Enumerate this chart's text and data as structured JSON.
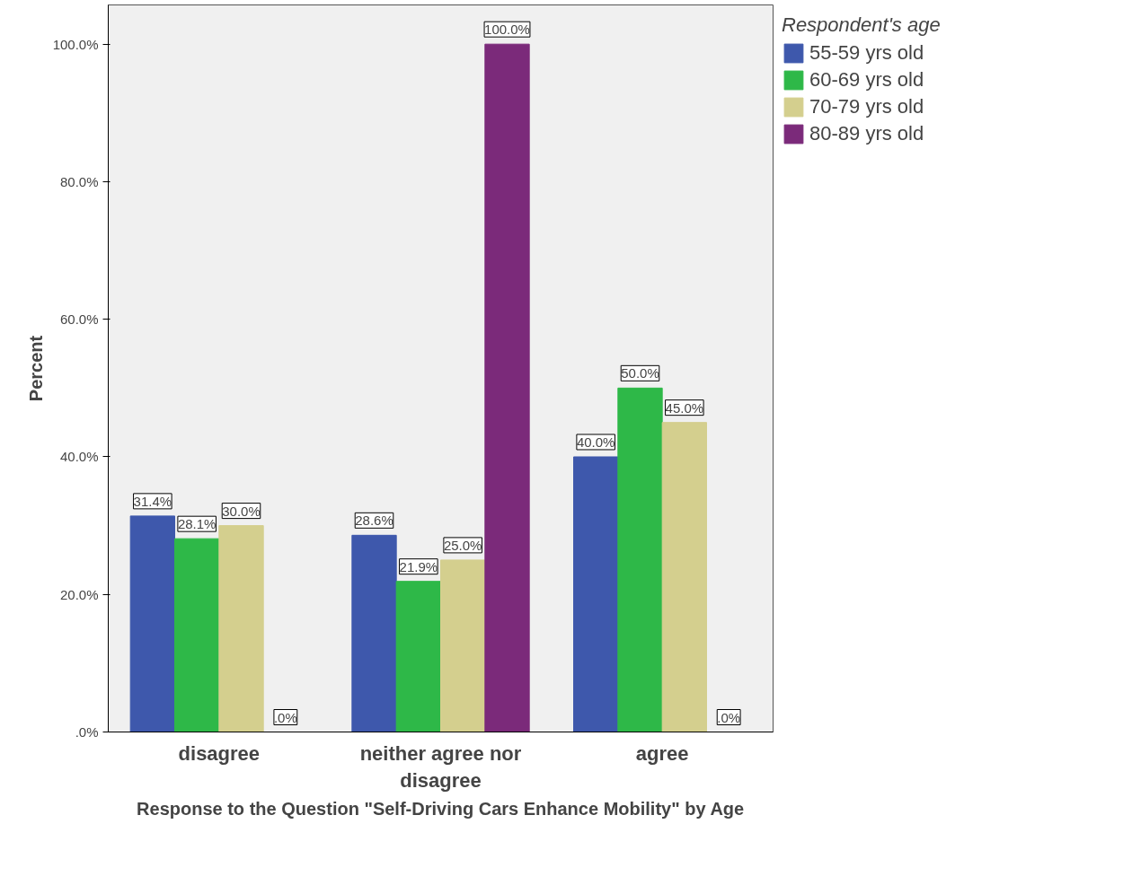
{
  "chart_data": {
    "type": "bar",
    "xlabel": "Response to the Question \"Self-Driving Cars Enhance Mobility\" by Age",
    "ylabel": "Percent",
    "legend_title": "Respondent's age",
    "legend": "top right",
    "grid": false,
    "categories": [
      "disagree",
      "neither agree nor disagree",
      "agree"
    ],
    "ylim": [
      0,
      105.7
    ],
    "yticks": [
      {
        "value": 0,
        "label": ".0%"
      },
      {
        "value": 20,
        "label": "20.0%"
      },
      {
        "value": 40,
        "label": "40.0%"
      },
      {
        "value": 60,
        "label": "60.0%"
      },
      {
        "value": 80,
        "label": "80.0%"
      },
      {
        "value": 100,
        "label": "100.0%"
      }
    ],
    "series": [
      {
        "name": "55-59 yrs old",
        "color": "#3e58ac",
        "values": [
          31.4,
          28.6,
          40.0
        ],
        "value_labels": [
          "31.4%",
          "28.6%",
          "40.0%"
        ]
      },
      {
        "name": "60-69 yrs old",
        "color": "#2eb848",
        "values": [
          28.1,
          21.9,
          50.0
        ],
        "value_labels": [
          "28.1%",
          "21.9%",
          "50.0%"
        ]
      },
      {
        "name": "70-79 yrs old",
        "color": "#d4cf8e",
        "values": [
          30.0,
          25.0,
          45.0
        ],
        "value_labels": [
          "30.0%",
          "25.0%",
          "45.0%"
        ]
      },
      {
        "name": "80-89 yrs old",
        "color": "#7b2a7a",
        "values": [
          0.0,
          100.0,
          0.0
        ],
        "value_labels": [
          ".0%",
          "100.0%",
          ".0%"
        ]
      }
    ]
  }
}
